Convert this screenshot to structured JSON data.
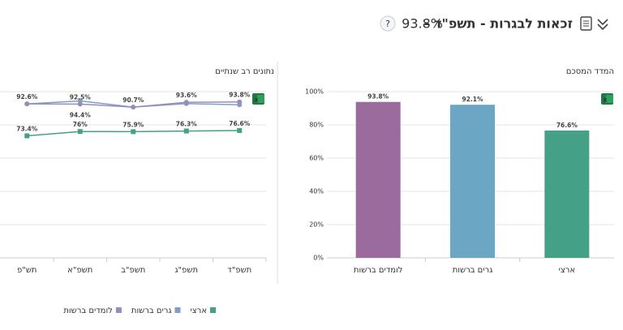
{
  "header": {
    "title": "זכאות לבגרות - תשפ\"ד -",
    "value": "93.8%",
    "help": "?"
  },
  "chart_data": [
    {
      "type": "bar",
      "title": "המדד המסכם",
      "categories": [
        "לומדים ברשות",
        "גרים ברשות",
        "ארצי"
      ],
      "values": [
        93.8,
        92.1,
        76.6
      ],
      "value_labels": [
        "93.8%",
        "92.1%",
        "76.6%"
      ],
      "colors": [
        "#9b6b9e",
        "#6ba6c4",
        "#45a088"
      ],
      "ylim": [
        0,
        100
      ],
      "yticks": [
        {
          "value": 0,
          "label": "0%"
        },
        {
          "value": 20,
          "label": "20%"
        },
        {
          "value": 40,
          "label": "40%"
        },
        {
          "value": 60,
          "label": "60%"
        },
        {
          "value": 80,
          "label": "80%"
        },
        {
          "value": 100,
          "label": "100%"
        }
      ],
      "grid": true
    },
    {
      "type": "line",
      "title": "נתונים רב שנתיים",
      "categories": [
        "תש\"פ",
        "תשפ\"א",
        "תשפ\"ב",
        "תשפ\"ג",
        "תשפ\"ד"
      ],
      "series": [
        {
          "name": "ארצי",
          "color": "#45a088",
          "values": [
            73.4,
            76,
            75.9,
            76.3,
            76.6
          ],
          "value_labels": [
            "73.4%",
            "76%",
            "75.9%",
            "76.3%",
            "76.6%"
          ]
        },
        {
          "name": "גרים ברשות",
          "color": "#7f9fc6",
          "values": [
            92.6,
            94.4,
            90.7,
            92.8,
            92.1
          ],
          "value_labels": [
            null,
            "94.4%",
            null,
            null,
            null
          ]
        },
        {
          "name": "לומדים ברשות",
          "color": "#9b8bbb",
          "values": [
            92.6,
            92.5,
            90.7,
            93.6,
            93.8
          ],
          "value_labels": [
            "92.6%",
            "92.5%",
            "90.7%",
            "93.6%",
            "93.8%"
          ]
        }
      ],
      "ylim": [
        0,
        100
      ],
      "yticks": [
        0,
        20,
        40,
        60,
        80,
        100
      ],
      "grid": true
    }
  ]
}
